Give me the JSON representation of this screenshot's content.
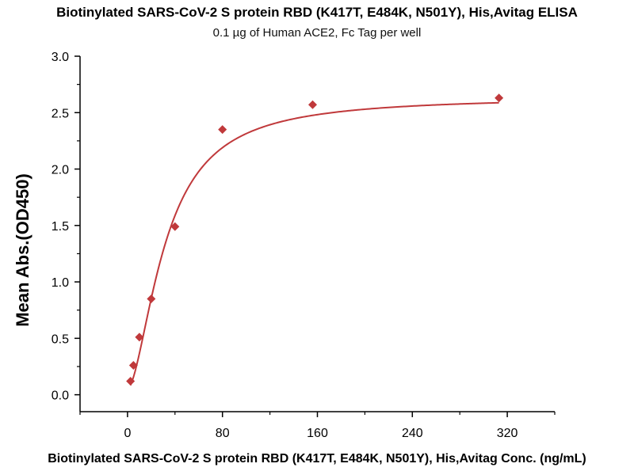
{
  "chart_data": {
    "type": "scatter",
    "title": "Biotinylated SARS-CoV-2 S protein RBD (K417T, E484K, N501Y), His,Avitag ELISA",
    "subtitle": "0.1 µg of Human ACE2, Fc Tag per well",
    "xlabel": "Biotinylated SARS-CoV-2 S protein RBD (K417T, E484K, N501Y), His,Avitag Conc. (ng/mL)",
    "ylabel": "Mean Abs.(OD450)",
    "xlim": [
      -40,
      360
    ],
    "ylim": [
      -0.15,
      3.0
    ],
    "x_ticks": [
      "0",
      "80",
      "160",
      "240",
      "320"
    ],
    "x_tick_values": [
      0,
      80,
      160,
      240,
      320
    ],
    "y_ticks": [
      "0.0",
      "0.5",
      "1.0",
      "1.5",
      "2.0",
      "2.5",
      "3.0"
    ],
    "y_tick_values": [
      0.0,
      0.5,
      1.0,
      1.5,
      2.0,
      2.5,
      3.0
    ],
    "grid": false,
    "series": [
      {
        "marker": "diamond",
        "color": "#c0393b",
        "x": [
          2.5,
          5,
          10,
          20,
          40,
          80,
          156,
          313
        ],
        "y": [
          0.12,
          0.26,
          0.51,
          0.85,
          1.49,
          2.35,
          2.57,
          2.63
        ]
      }
    ],
    "fit_curve": {
      "type": "4PL",
      "color": "#c0393b",
      "bottom": 0.05,
      "top": 2.64,
      "ec50": 32,
      "hill": 1.7
    }
  }
}
